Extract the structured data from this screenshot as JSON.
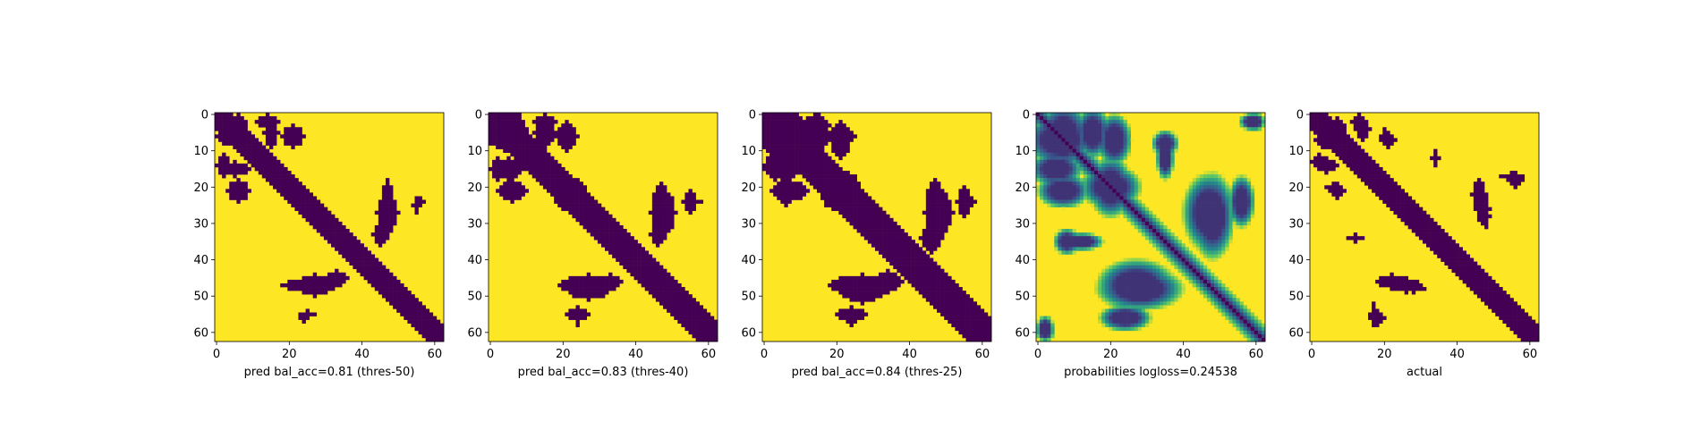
{
  "chart_data": [
    {
      "type": "heatmap",
      "xlabel": "pred bal_acc=0.81 (thres-50)",
      "grid": false,
      "colormap": "viridis-binary",
      "shape": [
        63,
        63
      ],
      "xticks": [
        0,
        20,
        40,
        60
      ],
      "yticks": [
        0,
        10,
        20,
        30,
        40,
        50,
        60
      ],
      "diagonal_band_width": 4,
      "blobs": [
        {
          "cx": 6,
          "cy": 5,
          "rx": 3,
          "ry": 5
        },
        {
          "cx": 14,
          "cy": 2,
          "rx": 3,
          "ry": 2
        },
        {
          "cx": 21,
          "cy": 6,
          "rx": 3,
          "ry": 3
        },
        {
          "cx": 5,
          "cy": 15,
          "rx": 4,
          "ry": 2
        },
        {
          "cx": 6,
          "cy": 21,
          "rx": 3,
          "ry": 2
        },
        {
          "cx": 20,
          "cy": 20,
          "rx": 4,
          "ry": 3
        },
        {
          "cx": 47,
          "cy": 27,
          "rx": 3,
          "ry": 5
        },
        {
          "cx": 56,
          "cy": 24,
          "rx": 1,
          "ry": 1
        },
        {
          "cx": 26,
          "cy": 47,
          "rx": 8,
          "ry": 2
        },
        {
          "cx": 33,
          "cy": 45,
          "rx": 3,
          "ry": 2
        },
        {
          "cx": 25,
          "cy": 55,
          "rx": 2,
          "ry": 1
        }
      ]
    },
    {
      "type": "heatmap",
      "xlabel": "pred bal_acc=0.83 (thres-40)",
      "grid": false,
      "colormap": "viridis-binary",
      "shape": [
        63,
        63
      ],
      "xticks": [
        0,
        20,
        40,
        60
      ],
      "yticks": [
        0,
        10,
        20,
        30,
        40,
        50,
        60
      ],
      "diagonal_band_width": 5,
      "blobs": [
        {
          "cx": 6,
          "cy": 5,
          "rx": 4,
          "ry": 6
        },
        {
          "cx": 15,
          "cy": 2,
          "rx": 3,
          "ry": 2
        },
        {
          "cx": 21,
          "cy": 6,
          "rx": 3,
          "ry": 3
        },
        {
          "cx": 5,
          "cy": 15,
          "rx": 4,
          "ry": 3
        },
        {
          "cx": 6,
          "cy": 21,
          "rx": 4,
          "ry": 2
        },
        {
          "cx": 21,
          "cy": 20,
          "rx": 5,
          "ry": 3
        },
        {
          "cx": 48,
          "cy": 27,
          "rx": 3,
          "ry": 6
        },
        {
          "cx": 56,
          "cy": 24,
          "rx": 2,
          "ry": 1
        },
        {
          "cx": 27,
          "cy": 47,
          "rx": 8,
          "ry": 3
        },
        {
          "cx": 33,
          "cy": 46,
          "rx": 3,
          "ry": 2
        },
        {
          "cx": 24,
          "cy": 55,
          "rx": 3,
          "ry": 2
        }
      ]
    },
    {
      "type": "heatmap",
      "xlabel": "pred bal_acc=0.84 (thres-25)",
      "grid": false,
      "colormap": "viridis-binary",
      "shape": [
        63,
        63
      ],
      "xticks": [
        0,
        20,
        40,
        60
      ],
      "yticks": [
        0,
        10,
        20,
        30,
        40,
        50,
        60
      ],
      "diagonal_band_width": 6,
      "blobs": [
        {
          "cx": 7,
          "cy": 6,
          "rx": 5,
          "ry": 7
        },
        {
          "cx": 14,
          "cy": 3,
          "rx": 4,
          "ry": 3
        },
        {
          "cx": 21,
          "cy": 6,
          "rx": 4,
          "ry": 3
        },
        {
          "cx": 5,
          "cy": 15,
          "rx": 5,
          "ry": 3
        },
        {
          "cx": 7,
          "cy": 21,
          "rx": 5,
          "ry": 3
        },
        {
          "cx": 20,
          "cy": 19,
          "rx": 6,
          "ry": 4
        },
        {
          "cx": 48,
          "cy": 27,
          "rx": 4,
          "ry": 6
        },
        {
          "cx": 56,
          "cy": 24,
          "rx": 2,
          "ry": 2
        },
        {
          "cx": 27,
          "cy": 47,
          "rx": 9,
          "ry": 3
        },
        {
          "cx": 34,
          "cy": 46,
          "rx": 4,
          "ry": 3
        },
        {
          "cx": 24,
          "cy": 55,
          "rx": 4,
          "ry": 2
        }
      ]
    },
    {
      "type": "heatmap",
      "xlabel": "probabilities logloss=0.24538",
      "grid": false,
      "colormap": "viridis",
      "continuous": true,
      "shape": [
        63,
        63
      ],
      "xticks": [
        0,
        20,
        40,
        60
      ],
      "yticks": [
        0,
        10,
        20,
        30,
        40,
        50,
        60
      ],
      "diagonal_band_width": 4,
      "blobs": [
        {
          "cx": 7,
          "cy": 6,
          "rx": 6,
          "ry": 8
        },
        {
          "cx": 15,
          "cy": 4,
          "rx": 4,
          "ry": 4
        },
        {
          "cx": 21,
          "cy": 7,
          "rx": 4,
          "ry": 4
        },
        {
          "cx": 5,
          "cy": 15,
          "rx": 6,
          "ry": 4
        },
        {
          "cx": 7,
          "cy": 21,
          "rx": 6,
          "ry": 4
        },
        {
          "cx": 20,
          "cy": 20,
          "rx": 7,
          "ry": 5
        },
        {
          "cx": 47,
          "cy": 27,
          "rx": 6,
          "ry": 9
        },
        {
          "cx": 35,
          "cy": 8,
          "rx": 3,
          "ry": 3
        },
        {
          "cx": 28,
          "cy": 48,
          "rx": 10,
          "ry": 5
        },
        {
          "cx": 24,
          "cy": 56,
          "rx": 6,
          "ry": 3
        },
        {
          "cx": 12,
          "cy": 35,
          "rx": 5,
          "ry": 2
        },
        {
          "cx": 2,
          "cy": 59,
          "rx": 2,
          "ry": 3
        },
        {
          "cx": 60,
          "cy": 2,
          "rx": 2,
          "ry": 2
        }
      ]
    },
    {
      "type": "heatmap",
      "xlabel": "actual",
      "grid": false,
      "colormap": "viridis-binary",
      "shape": [
        63,
        63
      ],
      "xticks": [
        0,
        20,
        40,
        60
      ],
      "yticks": [
        0,
        10,
        20,
        30,
        40,
        50,
        60
      ],
      "diagonal_band_width": 4,
      "blobs": [
        {
          "cx": 7,
          "cy": 6,
          "rx": 3,
          "ry": 5
        },
        {
          "cx": 13,
          "cy": 2,
          "rx": 2,
          "ry": 2
        },
        {
          "cx": 21,
          "cy": 7,
          "rx": 2,
          "ry": 2
        },
        {
          "cx": 4,
          "cy": 14,
          "rx": 3,
          "ry": 2
        },
        {
          "cx": 6,
          "cy": 20,
          "rx": 2,
          "ry": 1
        },
        {
          "cx": 19,
          "cy": 19,
          "rx": 3,
          "ry": 2
        },
        {
          "cx": 47,
          "cy": 26,
          "rx": 2,
          "ry": 4
        },
        {
          "cx": 55,
          "cy": 17,
          "rx": 3,
          "ry": 1
        },
        {
          "cx": 22,
          "cy": 46,
          "rx": 4,
          "ry": 2
        },
        {
          "cx": 28,
          "cy": 48,
          "rx": 3,
          "ry": 1
        },
        {
          "cx": 18,
          "cy": 56,
          "rx": 2,
          "ry": 2
        },
        {
          "cx": 12,
          "cy": 34,
          "rx": 2,
          "ry": 1
        }
      ]
    }
  ]
}
